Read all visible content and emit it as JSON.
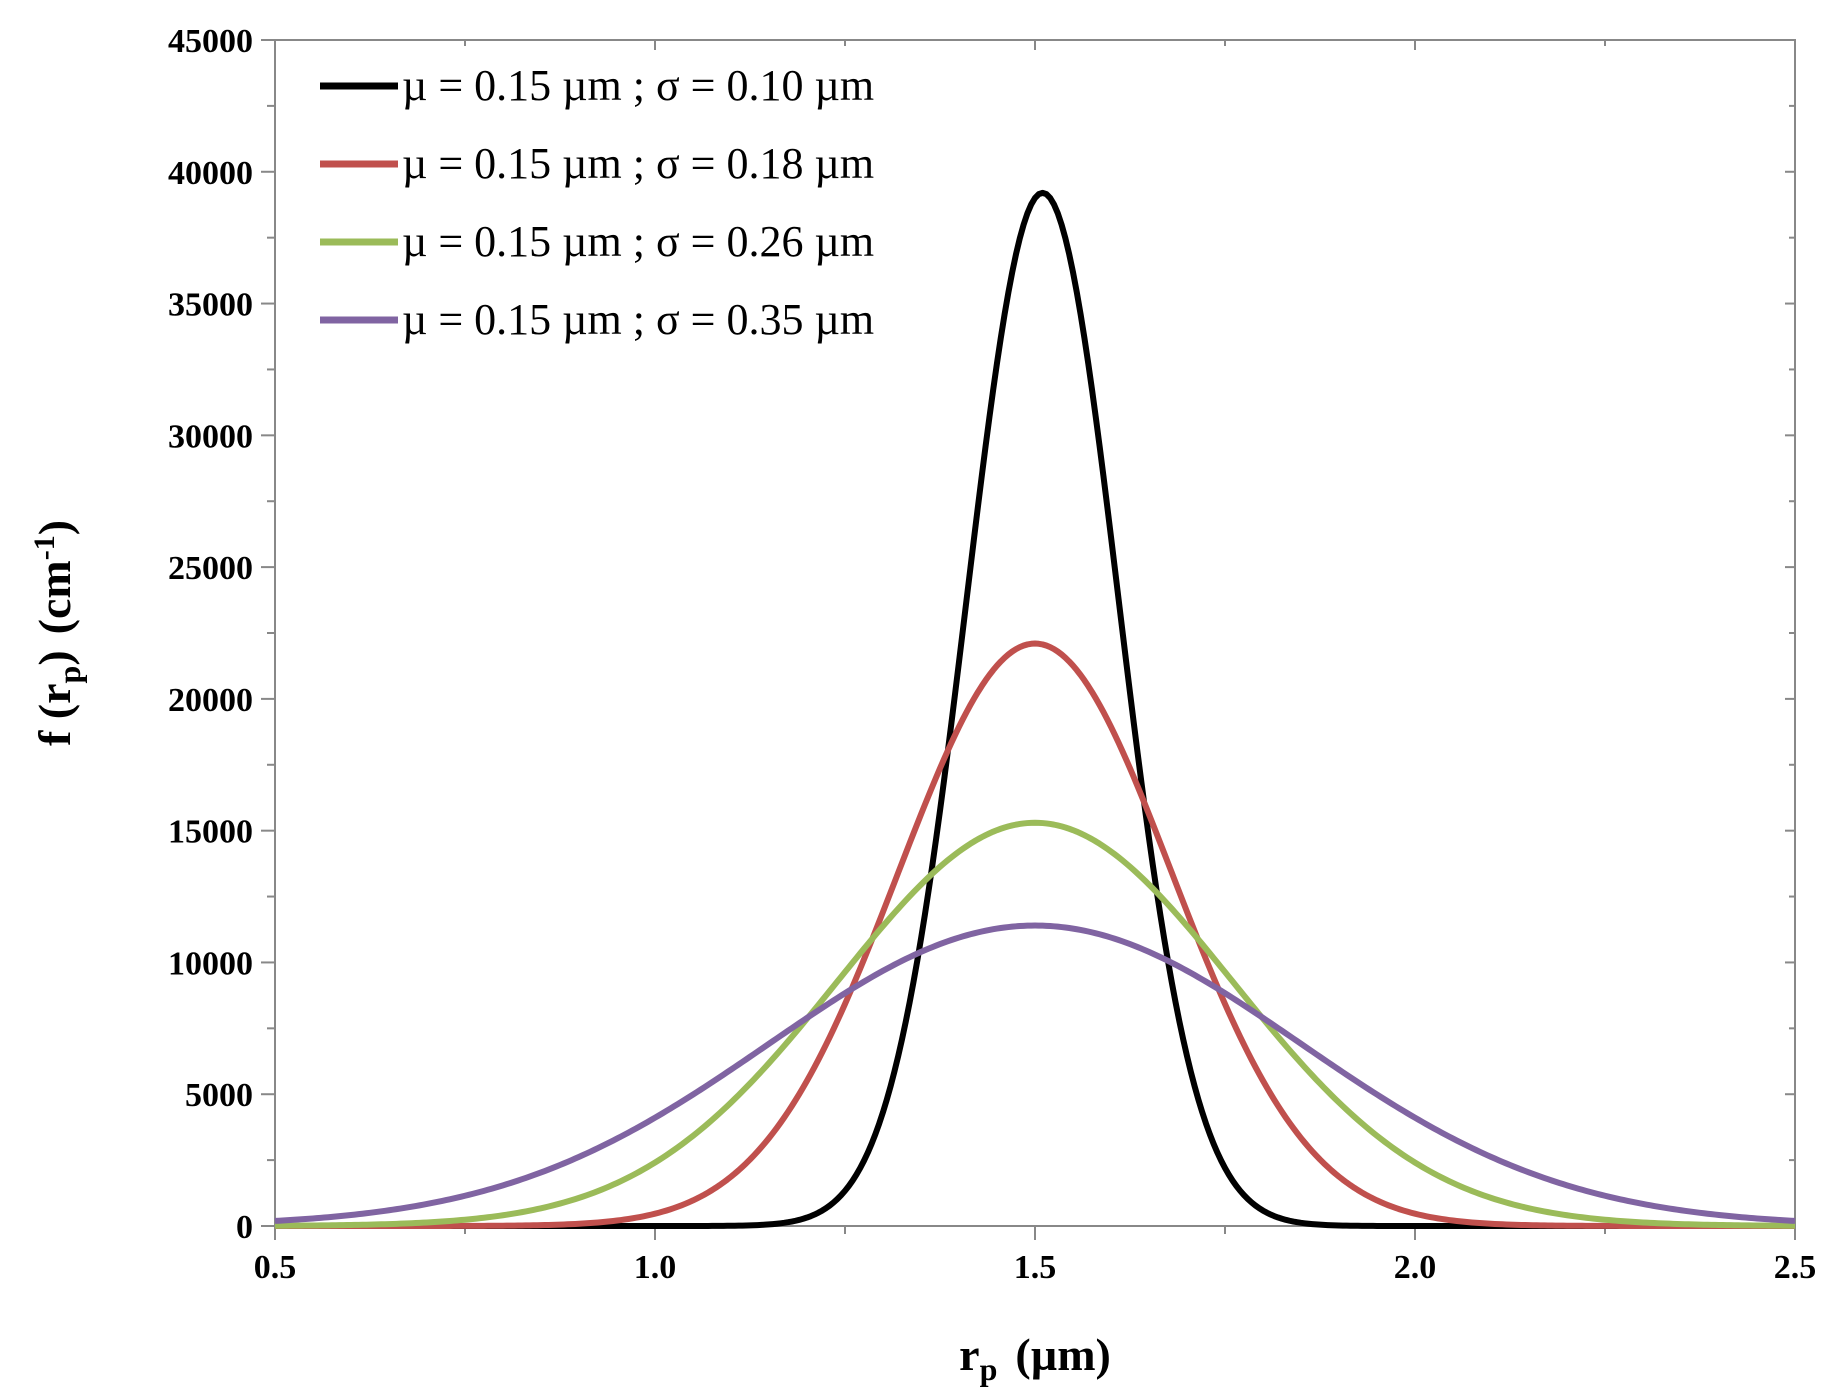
{
  "chart_data": {
    "type": "line",
    "title": "",
    "xlabel": {
      "main": "r",
      "sub": "p",
      "unit": "(µm)"
    },
    "ylabel": {
      "main": "f (r",
      "sub": "p",
      "close": ")",
      "unit_open": "(cm",
      "sup": "-1",
      "unit_close": ")"
    },
    "xlim": [
      0.5,
      2.5
    ],
    "ylim": [
      0,
      45000
    ],
    "xticks": [
      "0.5",
      "1.0",
      "1.5",
      "2.0",
      "2.5"
    ],
    "xtick_values": [
      0.5,
      1.0,
      1.5,
      2.0,
      2.5
    ],
    "yticks": [
      "0",
      "5000",
      "10000",
      "15000",
      "20000",
      "25000",
      "30000",
      "35000",
      "40000",
      "45000"
    ],
    "ytick_values": [
      0,
      5000,
      10000,
      15000,
      20000,
      25000,
      30000,
      35000,
      40000,
      45000
    ],
    "grid": false,
    "legend_position": "top-left",
    "series": [
      {
        "name": "µ = 0.15 µm  ; σ = 0.10 µm",
        "color": "#000000",
        "center": 1.51,
        "sigma": 0.1,
        "peak": 39200
      },
      {
        "name": "µ = 0.15 µm  ; σ = 0.18 µm",
        "color": "#c0504d",
        "center": 1.5,
        "sigma": 0.18,
        "peak": 22100
      },
      {
        "name": "µ = 0.15 µm  ; σ = 0.26 µm",
        "color": "#9bbb59",
        "center": 1.5,
        "sigma": 0.26,
        "peak": 15300
      },
      {
        "name": "µ = 0.15 µm  ; σ = 0.35 µm",
        "color": "#8064a2",
        "center": 1.5,
        "sigma": 0.35,
        "peak": 11400
      }
    ]
  }
}
